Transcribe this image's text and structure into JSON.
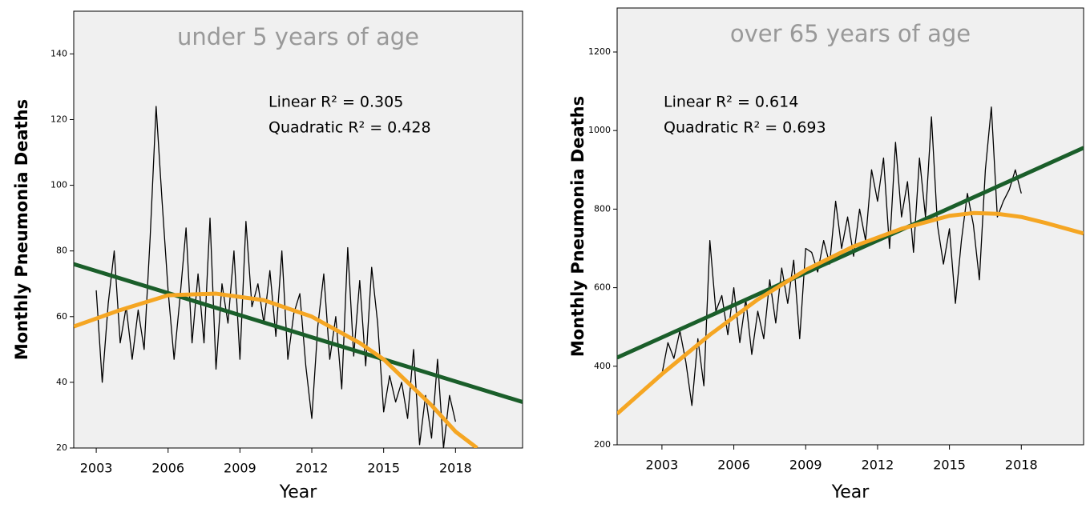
{
  "chart_data": [
    {
      "type": "line",
      "title": "under 5 years of age",
      "xlabel": "Year",
      "ylabel": "Monthly Pneumonia Deaths",
      "annotations": [
        "Linear R² = 0.305",
        "Quadratic R² = 0.428"
      ],
      "xlim": [
        2002.06,
        2020.8
      ],
      "xticks": [
        2003,
        2006,
        2009,
        2012,
        2015,
        2018
      ],
      "ylim": [
        20,
        153
      ],
      "yticks": [
        20,
        40,
        60,
        80,
        100,
        120,
        140
      ],
      "series": [
        {
          "color": "#000000",
          "x": [
            2003,
            2003.25,
            2003.5,
            2003.75,
            2004,
            2004.25,
            2004.5,
            2004.75,
            2005,
            2005.25,
            2005.5,
            2005.75,
            2006,
            2006.25,
            2006.5,
            2006.75,
            2007,
            2007.25,
            2007.5,
            2007.75,
            2008,
            2008.25,
            2008.5,
            2008.75,
            2009,
            2009.25,
            2009.5,
            2009.75,
            2010,
            2010.25,
            2010.5,
            2010.75,
            2011,
            2011.25,
            2011.5,
            2011.75,
            2012,
            2012.25,
            2012.5,
            2012.75,
            2013,
            2013.25,
            2013.5,
            2013.75,
            2014,
            2014.25,
            2014.5,
            2014.75,
            2015,
            2015.25,
            2015.5,
            2015.75,
            2016,
            2016.25,
            2016.5,
            2016.75,
            2017,
            2017.25,
            2017.5,
            2017.75,
            2018
          ],
          "values": [
            68,
            40,
            64,
            80,
            52,
            63,
            47,
            62,
            50,
            84,
            124,
            95,
            68,
            47,
            66,
            87,
            52,
            73,
            52,
            90,
            44,
            70,
            58,
            80,
            47,
            89,
            63,
            70,
            58,
            74,
            54,
            80,
            47,
            61,
            67,
            45,
            29,
            57,
            73,
            47,
            60,
            38,
            81,
            48,
            71,
            45,
            75,
            58,
            31,
            42,
            34,
            40,
            29,
            50,
            21,
            36,
            23,
            47,
            20,
            36,
            28
          ]
        },
        {
          "color": "#1a5e2a",
          "x": [
            2002.06,
            2020.8
          ],
          "values": [
            76,
            34
          ]
        },
        {
          "color": "#f5a623",
          "x": [
            2002.06,
            2004,
            2006,
            2008,
            2010,
            2012,
            2014,
            2015,
            2016,
            2017,
            2018,
            2018.9
          ],
          "values": [
            57,
            62,
            66.5,
            67,
            65,
            60,
            52,
            47,
            40,
            33,
            25,
            20
          ]
        }
      ]
    },
    {
      "type": "line",
      "title": "over 65 years of age",
      "xlabel": "Year",
      "ylabel": "Monthly Pneumonia Deaths",
      "annotations": [
        "Linear R² = 0.614",
        "Quadratic R² = 0.693"
      ],
      "xlim": [
        2001.13,
        2020.6
      ],
      "xticks": [
        2003,
        2006,
        2009,
        2012,
        2015,
        2018
      ],
      "ylim": [
        200,
        1312
      ],
      "yticks": [
        200,
        400,
        600,
        800,
        1000,
        1200
      ],
      "series": [
        {
          "color": "#000000",
          "x": [
            2003,
            2003.25,
            2003.5,
            2003.75,
            2004,
            2004.25,
            2004.5,
            2004.75,
            2005,
            2005.25,
            2005.5,
            2005.75,
            2006,
            2006.25,
            2006.5,
            2006.75,
            2007,
            2007.25,
            2007.5,
            2007.75,
            2008,
            2008.25,
            2008.5,
            2008.75,
            2009,
            2009.25,
            2009.5,
            2009.75,
            2010,
            2010.25,
            2010.5,
            2010.75,
            2011,
            2011.25,
            2011.5,
            2011.75,
            2012,
            2012.25,
            2012.5,
            2012.75,
            2013,
            2013.25,
            2013.5,
            2013.75,
            2014,
            2014.25,
            2014.5,
            2014.75,
            2015,
            2015.25,
            2015.5,
            2015.75,
            2016,
            2016.25,
            2016.5,
            2016.75,
            2017,
            2017.25,
            2017.5,
            2017.75,
            2018
          ],
          "values": [
            380,
            460,
            420,
            490,
            410,
            300,
            470,
            350,
            720,
            540,
            580,
            480,
            600,
            460,
            570,
            430,
            540,
            470,
            620,
            510,
            650,
            560,
            670,
            470,
            700,
            690,
            640,
            720,
            660,
            820,
            700,
            780,
            680,
            800,
            720,
            900,
            820,
            930,
            700,
            970,
            780,
            870,
            690,
            930,
            780,
            1035,
            760,
            660,
            750,
            560,
            720,
            840,
            760,
            620,
            900,
            1060,
            780,
            820,
            850,
            900,
            840
          ]
        },
        {
          "color": "#1a5e2a",
          "x": [
            2001.13,
            2020.6
          ],
          "values": [
            422,
            956
          ]
        },
        {
          "color": "#f5a623",
          "x": [
            2001.13,
            2003,
            2005,
            2007,
            2009,
            2011,
            2013,
            2015,
            2016,
            2017,
            2018,
            2019,
            2020.6
          ],
          "values": [
            279,
            380,
            480,
            570,
            645,
            705,
            750,
            783,
            790,
            788,
            780,
            765,
            738
          ]
        }
      ]
    }
  ]
}
